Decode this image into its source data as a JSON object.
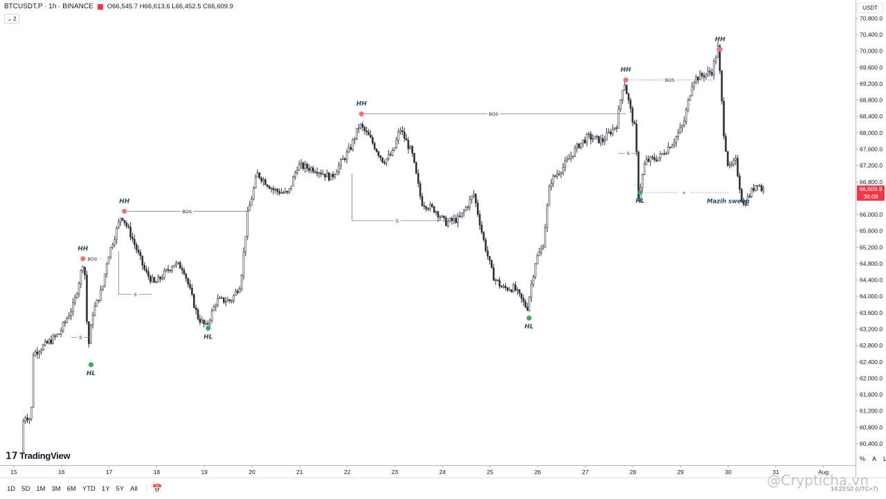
{
  "legend": {
    "symbol": "BTCUSDT.P · 1h · BINANCE",
    "ohlc": "O66,545.7 H66,613.6 L66,452.5 C66,609.9",
    "collapse_count": "2"
  },
  "price_axis": {
    "currency": "USDT",
    "last_price": "66,609.9",
    "countdown": "36:08"
  },
  "logo": {
    "text": "TradingView"
  },
  "range_buttons": [
    "1D",
    "5D",
    "1M",
    "3M",
    "6M",
    "YTD",
    "1Y",
    "5Y",
    "All"
  ],
  "clock": "14:23:52 (UTC+7)",
  "scale_buttons": [
    "%",
    "A",
    "L"
  ],
  "watermark": "@Crypticha.vn",
  "colors": {
    "candle": "#2a2e39",
    "high_marker": "#ef7373",
    "low_marker": "#3da95e",
    "last_price": "#f23645"
  },
  "chart_data": {
    "type": "candlestick",
    "timeframe": "1h",
    "x_ticks": [
      "15",
      "16",
      "17",
      "18",
      "19",
      "20",
      "21",
      "22",
      "23",
      "24",
      "25",
      "26",
      "27",
      "28",
      "29",
      "30",
      "31",
      "Aug"
    ],
    "y_ticks": [
      "60,400.0",
      "60,800.0",
      "61,200.0",
      "61,600.0",
      "62,000.0",
      "62,400.0",
      "62,800.0",
      "63,200.0",
      "63,600.0",
      "64,000.0",
      "64,400.0",
      "64,800.0",
      "65,200.0",
      "65,600.0",
      "66,000.0",
      "66,400.0",
      "66,800.0",
      "67,200.0",
      "67,600.0",
      "68,000.0",
      "68,400.0",
      "68,800.0",
      "69,200.0",
      "69,600.0",
      "70,000.0",
      "70,400.0",
      "70,800.0"
    ],
    "y_range": [
      60000,
      71000
    ],
    "x_range": [
      15,
      32
    ],
    "price_path": [
      [
        15.2,
        60200
      ],
      [
        15.25,
        61100
      ],
      [
        15.4,
        61000
      ],
      [
        15.45,
        62600
      ],
      [
        15.8,
        62900
      ],
      [
        16.0,
        63100
      ],
      [
        16.3,
        63800
      ],
      [
        16.5,
        64850
      ],
      [
        16.52,
        64900
      ],
      [
        16.6,
        62700
      ],
      [
        16.7,
        63600
      ],
      [
        16.9,
        64200
      ],
      [
        17.0,
        64900
      ],
      [
        17.3,
        66000
      ],
      [
        17.5,
        65500
      ],
      [
        17.8,
        64600
      ],
      [
        18.0,
        64300
      ],
      [
        18.4,
        64800
      ],
      [
        18.6,
        64700
      ],
      [
        18.9,
        63500
      ],
      [
        19.08,
        63250
      ],
      [
        19.3,
        63900
      ],
      [
        19.6,
        63900
      ],
      [
        19.8,
        64300
      ],
      [
        19.95,
        66000
      ],
      [
        20.15,
        67000
      ],
      [
        20.5,
        66600
      ],
      [
        20.8,
        66500
      ],
      [
        21.0,
        67200
      ],
      [
        21.4,
        67100
      ],
      [
        21.7,
        66900
      ],
      [
        22.1,
        67600
      ],
      [
        22.3,
        68200
      ],
      [
        22.5,
        67900
      ],
      [
        22.8,
        67300
      ],
      [
        23.0,
        67500
      ],
      [
        23.15,
        68100
      ],
      [
        23.4,
        67500
      ],
      [
        23.6,
        66300
      ],
      [
        23.9,
        66100
      ],
      [
        24.1,
        65800
      ],
      [
        24.4,
        65900
      ],
      [
        24.7,
        66500
      ],
      [
        24.9,
        65400
      ],
      [
        25.1,
        64500
      ],
      [
        25.3,
        64200
      ],
      [
        25.55,
        64200
      ],
      [
        25.82,
        63700
      ],
      [
        26.0,
        64900
      ],
      [
        26.15,
        65200
      ],
      [
        26.3,
        66800
      ],
      [
        26.6,
        67200
      ],
      [
        26.9,
        67700
      ],
      [
        27.1,
        67900
      ],
      [
        27.4,
        67800
      ],
      [
        27.7,
        68200
      ],
      [
        27.85,
        69300
      ],
      [
        28.0,
        68500
      ],
      [
        28.1,
        68000
      ],
      [
        28.15,
        66400
      ],
      [
        28.3,
        67300
      ],
      [
        28.6,
        67400
      ],
      [
        28.9,
        67800
      ],
      [
        29.1,
        68200
      ],
      [
        29.3,
        69300
      ],
      [
        29.5,
        69400
      ],
      [
        29.7,
        69500
      ],
      [
        29.83,
        70100
      ],
      [
        29.95,
        68000
      ],
      [
        30.05,
        67100
      ],
      [
        30.2,
        67300
      ],
      [
        30.35,
        66200
      ],
      [
        30.5,
        66500
      ],
      [
        30.65,
        66800
      ],
      [
        30.75,
        66610
      ]
    ],
    "swing_points": [
      {
        "type": "HH",
        "x": 16.45,
        "y": 64920
      },
      {
        "type": "HL",
        "x": 16.62,
        "y": 62330
      },
      {
        "type": "HH",
        "x": 17.32,
        "y": 66080
      },
      {
        "type": "HL",
        "x": 19.08,
        "y": 63220
      },
      {
        "type": "HH",
        "x": 22.3,
        "y": 68460
      },
      {
        "type": "HL",
        "x": 25.82,
        "y": 63470
      },
      {
        "type": "HH",
        "x": 27.85,
        "y": 69290
      },
      {
        "type": "HL",
        "x": 28.15,
        "y": 66540
      },
      {
        "type": "HH",
        "x": 29.83,
        "y": 70040
      }
    ],
    "structure_lines": [
      {
        "label": "BOS",
        "x1": 16.45,
        "x2": 16.85,
        "y": 64920,
        "style": "dotted"
      },
      {
        "label": "BOS",
        "x1": 17.32,
        "x2": 19.95,
        "y": 66080,
        "style": "solid"
      },
      {
        "label": "BOS",
        "x1": 22.3,
        "x2": 27.85,
        "y": 68460,
        "style": "solid"
      },
      {
        "label": "BOS",
        "x1": 27.85,
        "x2": 29.7,
        "y": 69290,
        "style": "dotted"
      },
      {
        "label": "x",
        "x1": 28.15,
        "x2": 30.0,
        "y": 66540,
        "style": "dotted"
      }
    ],
    "sweep_brackets": [
      {
        "label": "S",
        "x1": 16.2,
        "x2": 16.6,
        "y_top": 63000,
        "y_bottom": 63000
      },
      {
        "label": "S",
        "x1": 17.2,
        "x2": 17.9,
        "y_top": 65100,
        "y_bottom": 64050
      },
      {
        "label": "S",
        "x1": 22.1,
        "x2": 24.0,
        "y_top": 67000,
        "y_bottom": 65850
      },
      {
        "label": "S",
        "x1": 27.7,
        "x2": 28.1,
        "y_top": 67500,
        "y_bottom": 67500
      }
    ],
    "annotation": {
      "text": "Mazih sweep",
      "x": 30.0,
      "y": 66280
    }
  }
}
